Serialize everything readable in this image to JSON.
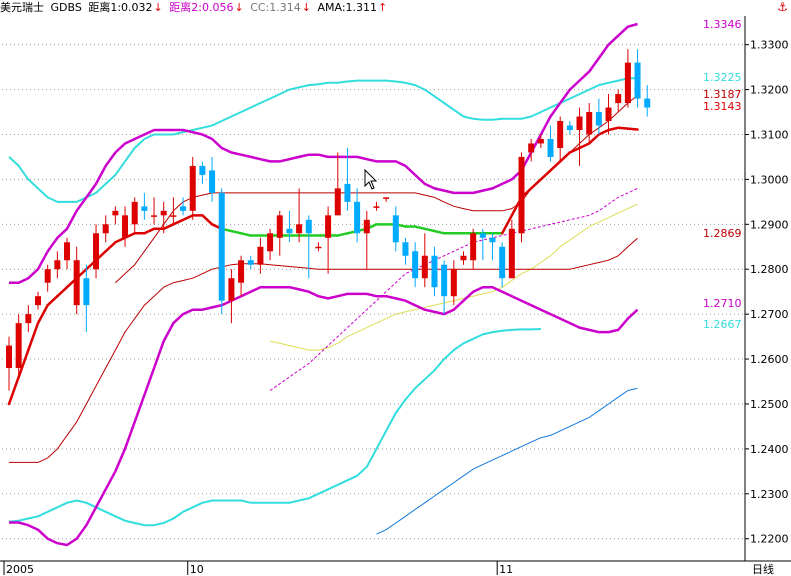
{
  "header": {
    "symbol": "美元瑞士",
    "indicator": "GDBS",
    "items": [
      {
        "label": "距离1:0.032",
        "arrow": "↓",
        "color": "#000000"
      },
      {
        "label": "距离2:0.056",
        "arrow": "↓",
        "color": "#cc00cc"
      },
      {
        "label": "CC:1.314",
        "arrow": "↓",
        "color": "#777777"
      },
      {
        "label": "AMA:1.311",
        "arrow": "↑",
        "color": "#000000"
      }
    ],
    "corner_icon": "anchor-icon"
  },
  "colors": {
    "up": "#dd0000",
    "down": "#00aaff",
    "boll_outer": "#cc00cc",
    "boll_cyan": "#33dddd",
    "mid_red": "#bb0000",
    "ama": "#dd0000",
    "ama_flat": "#22cc22",
    "ma_blue": "#1177dd",
    "ma_yellow": "#dddd55"
  },
  "chart_data": {
    "type": "candlestick",
    "ylim": [
      1.216,
      1.338
    ],
    "y_ticks": [
      "1.3300",
      "1.3200",
      "1.3100",
      "1.3000",
      "1.2900",
      "1.2800",
      "1.2700",
      "1.2600",
      "1.2500",
      "1.2400",
      "1.2300",
      "1.2200"
    ],
    "y_tick_values": [
      1.33,
      1.32,
      1.31,
      1.3,
      1.29,
      1.28,
      1.27,
      1.26,
      1.25,
      1.24,
      1.23,
      1.22
    ],
    "x_labels": [
      {
        "i": 0,
        "text": "2005"
      },
      {
        "i": 19,
        "text": "10"
      },
      {
        "i": 51,
        "text": "11"
      }
    ],
    "x_unit": "日线",
    "right_labels": [
      {
        "value": "1.3346",
        "color": "#cc00cc"
      },
      {
        "value": "1.3225",
        "color": "#33dddd"
      },
      {
        "value": "1.3187",
        "color": "#bb0000"
      },
      {
        "value": "1.3143",
        "color": "#dd0000"
      },
      {
        "value": "1.2869",
        "color": "#bb0000"
      },
      {
        "value": "1.2710",
        "color": "#cc00cc"
      },
      {
        "value": "1.2667",
        "color": "#33dddd"
      }
    ],
    "candles": [
      [
        1.258,
        1.263,
        1.253,
        1.265
      ],
      [
        1.258,
        1.268,
        1.256,
        1.27
      ],
      [
        1.268,
        1.27,
        1.266,
        1.272
      ],
      [
        1.272,
        1.274,
        1.271,
        1.275
      ],
      [
        1.277,
        1.28,
        1.275,
        1.281
      ],
      [
        1.28,
        1.282,
        1.278,
        1.284
      ],
      [
        1.282,
        1.286,
        1.28,
        1.287
      ],
      [
        1.272,
        1.282,
        1.27,
        1.285
      ],
      [
        1.278,
        1.272,
        1.266,
        1.281
      ],
      [
        1.28,
        1.288,
        1.278,
        1.29
      ],
      [
        1.288,
        1.29,
        1.286,
        1.292
      ],
      [
        1.292,
        1.293,
        1.29,
        1.294
      ],
      [
        1.287,
        1.292,
        1.285,
        1.294
      ],
      [
        1.29,
        1.295,
        1.288,
        1.296
      ],
      [
        1.294,
        1.293,
        1.291,
        1.297
      ],
      [
        1.292,
        1.292,
        1.29,
        1.296
      ],
      [
        1.292,
        1.293,
        1.288,
        1.295
      ],
      [
        1.292,
        1.292,
        1.29,
        1.296
      ],
      [
        1.294,
        1.293,
        1.292,
        1.296
      ],
      [
        1.293,
        1.303,
        1.291,
        1.305
      ],
      [
        1.303,
        1.301,
        1.299,
        1.304
      ],
      [
        1.302,
        1.297,
        1.295,
        1.305
      ],
      [
        1.297,
        1.273,
        1.27,
        1.298
      ],
      [
        1.273,
        1.278,
        1.268,
        1.28
      ],
      [
        1.277,
        1.282,
        1.274,
        1.283
      ],
      [
        1.282,
        1.281,
        1.28,
        1.283
      ],
      [
        1.281,
        1.285,
        1.279,
        1.287
      ],
      [
        1.284,
        1.288,
        1.282,
        1.289
      ],
      [
        1.287,
        1.292,
        1.283,
        1.293
      ],
      [
        1.289,
        1.288,
        1.286,
        1.293
      ],
      [
        1.288,
        1.29,
        1.286,
        1.298
      ],
      [
        1.291,
        1.288,
        1.278,
        1.292
      ],
      [
        1.285,
        1.285,
        1.284,
        1.286
      ],
      [
        1.287,
        1.292,
        1.279,
        1.294
      ],
      [
        1.292,
        1.298,
        1.292,
        1.306
      ],
      [
        1.299,
        1.295,
        1.293,
        1.307
      ],
      [
        1.295,
        1.288,
        1.286,
        1.298
      ],
      [
        1.288,
        1.291,
        1.28,
        1.293
      ],
      [
        1.294,
        1.294,
        1.293,
        1.295
      ],
      [
        1.296,
        1.296,
        1.295,
        1.296
      ],
      [
        1.292,
        1.286,
        1.284,
        1.294
      ],
      [
        1.286,
        1.283,
        1.281,
        1.287
      ],
      [
        1.284,
        1.278,
        1.276,
        1.286
      ],
      [
        1.278,
        1.283,
        1.276,
        1.288
      ],
      [
        1.283,
        1.276,
        1.274,
        1.285
      ],
      [
        1.281,
        1.274,
        1.27,
        1.282
      ],
      [
        1.274,
        1.28,
        1.272,
        1.282
      ],
      [
        1.282,
        1.283,
        1.281,
        1.284
      ],
      [
        1.282,
        1.288,
        1.28,
        1.289
      ],
      [
        1.288,
        1.287,
        1.282,
        1.289
      ],
      [
        1.287,
        1.286,
        1.282,
        1.288
      ],
      [
        1.285,
        1.278,
        1.276,
        1.286
      ],
      [
        1.278,
        1.289,
        1.278,
        1.291
      ],
      [
        1.288,
        1.305,
        1.286,
        1.306
      ],
      [
        1.306,
        1.308,
        1.304,
        1.309
      ],
      [
        1.308,
        1.309,
        1.307,
        1.31
      ],
      [
        1.309,
        1.305,
        1.304,
        1.312
      ],
      [
        1.307,
        1.313,
        1.304,
        1.314
      ],
      [
        1.312,
        1.311,
        1.31,
        1.313
      ],
      [
        1.311,
        1.314,
        1.303,
        1.316
      ],
      [
        1.31,
        1.315,
        1.308,
        1.317
      ],
      [
        1.315,
        1.312,
        1.31,
        1.318
      ],
      [
        1.313,
        1.316,
        1.31,
        1.319
      ],
      [
        1.317,
        1.319,
        1.315,
        1.32
      ],
      [
        1.317,
        1.326,
        1.316,
        1.329
      ],
      [
        1.326,
        1.318,
        1.316,
        1.329
      ],
      [
        1.318,
        1.316,
        1.314,
        1.321
      ]
    ],
    "series": {
      "boll_upper": [
        1.277,
        1.277,
        1.278,
        1.28,
        1.284,
        1.287,
        1.289,
        1.293,
        1.296,
        1.299,
        1.303,
        1.306,
        1.308,
        1.309,
        1.31,
        1.311,
        1.311,
        1.311,
        1.311,
        1.3105,
        1.31,
        1.309,
        1.307,
        1.306,
        1.3055,
        1.305,
        1.3045,
        1.304,
        1.304,
        1.3045,
        1.305,
        1.3055,
        1.3055,
        1.305,
        1.305,
        1.305,
        1.305,
        1.3045,
        1.304,
        1.304,
        1.304,
        1.303,
        1.301,
        1.299,
        1.298,
        1.2975,
        1.297,
        1.297,
        1.297,
        1.2975,
        1.298,
        1.299,
        1.3,
        1.302,
        1.306,
        1.31,
        1.314,
        1.317,
        1.32,
        1.322,
        1.324,
        1.327,
        1.33,
        1.332,
        1.334,
        1.3346
      ],
      "boll_lower": [
        1.2236,
        1.2236,
        1.223,
        1.222,
        1.22,
        1.219,
        1.2186,
        1.22,
        1.223,
        1.227,
        1.231,
        1.235,
        1.24,
        1.246,
        1.252,
        1.258,
        1.264,
        1.268,
        1.27,
        1.271,
        1.271,
        1.2715,
        1.272,
        1.273,
        1.274,
        1.275,
        1.276,
        1.276,
        1.276,
        1.276,
        1.2755,
        1.275,
        1.274,
        1.2735,
        1.274,
        1.2745,
        1.2745,
        1.2745,
        1.274,
        1.274,
        1.2735,
        1.273,
        1.272,
        1.271,
        1.2705,
        1.27,
        1.271,
        1.273,
        1.275,
        1.276,
        1.276,
        1.275,
        1.274,
        1.273,
        1.272,
        1.271,
        1.27,
        1.269,
        1.268,
        1.267,
        1.2665,
        1.266,
        1.266,
        1.2665,
        1.269,
        1.271
      ],
      "cyan_upper": [
        1.305,
        1.303,
        1.3,
        1.298,
        1.296,
        1.295,
        1.295,
        1.295,
        1.296,
        1.297,
        1.299,
        1.301,
        1.304,
        1.307,
        1.309,
        1.31,
        1.31,
        1.31,
        1.3105,
        1.311,
        1.3115,
        1.312,
        1.313,
        1.314,
        1.315,
        1.316,
        1.317,
        1.318,
        1.319,
        1.32,
        1.3205,
        1.321,
        1.3212,
        1.3215,
        1.3215,
        1.3218,
        1.322,
        1.322,
        1.322,
        1.322,
        1.3218,
        1.3215,
        1.321,
        1.32,
        1.3185,
        1.317,
        1.3155,
        1.314,
        1.3135,
        1.3133,
        1.3133,
        1.3135,
        1.3135,
        1.3135,
        1.314,
        1.315,
        1.316,
        1.317,
        1.318,
        1.319,
        1.32,
        1.321,
        1.3215,
        1.322,
        1.3225,
        1.3225
      ],
      "cyan_lower": [
        1.2238,
        1.224,
        1.2245,
        1.225,
        1.226,
        1.227,
        1.228,
        1.2285,
        1.228,
        1.227,
        1.226,
        1.225,
        1.224,
        1.2235,
        1.223,
        1.223,
        1.2235,
        1.2245,
        1.226,
        1.227,
        1.228,
        1.2285,
        1.2285,
        1.2285,
        1.2285,
        1.228,
        1.228,
        1.228,
        1.228,
        1.228,
        1.2285,
        1.229,
        1.23,
        1.231,
        1.232,
        1.233,
        1.234,
        1.236,
        1.24,
        1.244,
        1.248,
        1.251,
        1.2535,
        1.2555,
        1.2575,
        1.26,
        1.262,
        1.2635,
        1.2645,
        1.2655,
        1.266,
        1.2663,
        1.2665,
        1.2666,
        1.2666,
        1.2667
      ],
      "mid_upper": [
        1.277,
        1.279,
        1.281,
        1.284,
        1.287,
        1.29,
        1.293,
        1.295,
        1.296,
        1.2965,
        1.297,
        1.297,
        1.297,
        1.297,
        1.297,
        1.297,
        1.297,
        1.297,
        1.297,
        1.297,
        1.297,
        1.297,
        1.297,
        1.297,
        1.297,
        1.297,
        1.297,
        1.297,
        1.297,
        1.297,
        1.297,
        1.297,
        1.2965,
        1.296,
        1.295,
        1.294,
        1.2935,
        1.293,
        1.293,
        1.293,
        1.293,
        1.2935,
        1.295,
        1.298,
        1.3,
        1.302,
        1.304,
        1.306,
        1.308,
        1.31,
        1.3115,
        1.313,
        1.315,
        1.317,
        1.3187
      ],
      "mid_lower": [
        1.237,
        1.237,
        1.237,
        1.237,
        1.238,
        1.24,
        1.243,
        1.246,
        1.25,
        1.254,
        1.258,
        1.262,
        1.266,
        1.269,
        1.272,
        1.274,
        1.276,
        1.277,
        1.2775,
        1.278,
        1.279,
        1.28,
        1.2805,
        1.281,
        1.2812,
        1.2812,
        1.2812,
        1.281,
        1.2808,
        1.2806,
        1.2804,
        1.2802,
        1.28,
        1.28,
        1.28,
        1.28,
        1.28,
        1.28,
        1.28,
        1.28,
        1.28,
        1.28,
        1.28,
        1.28,
        1.28,
        1.28,
        1.28,
        1.28,
        1.28,
        1.28,
        1.28,
        1.28,
        1.28,
        1.28,
        1.28,
        1.28,
        1.28,
        1.28,
        1.28,
        1.2805,
        1.281,
        1.2815,
        1.282,
        1.283,
        1.285,
        1.2869
      ],
      "ama": [
        1.25,
        1.256,
        1.262,
        1.268,
        1.272,
        1.274,
        1.276,
        1.278,
        1.28,
        1.282,
        1.284,
        1.286,
        1.287,
        1.288,
        1.288,
        1.289,
        1.289,
        1.29,
        1.291,
        1.292,
        1.292,
        1.29,
        1.289,
        1.2885,
        1.288,
        1.2875,
        1.2875,
        1.2875,
        1.2875,
        1.2875,
        1.2875,
        1.2875,
        1.2875,
        1.2875,
        1.2875,
        1.288,
        1.2885,
        1.289,
        1.29,
        1.29,
        1.29,
        1.2895,
        1.2895,
        1.289,
        1.2885,
        1.288,
        1.288,
        1.288,
        1.288,
        1.288,
        1.288,
        1.288,
        1.292,
        1.296,
        1.298,
        1.3,
        1.302,
        1.304,
        1.306,
        1.307,
        1.308,
        1.31,
        1.311,
        1.3115,
        1.3113,
        1.3111
      ],
      "ma_dash": [
        1.253,
        1.2545,
        1.256,
        1.2575,
        1.259,
        1.261,
        1.263,
        1.265,
        1.267,
        1.269,
        1.271,
        1.273,
        1.275,
        1.277,
        1.279,
        1.28,
        1.281,
        1.282,
        1.283,
        1.284,
        1.285,
        1.286,
        1.2865,
        1.287,
        1.2875,
        1.288,
        1.2885,
        1.289,
        1.2895,
        1.29,
        1.2905,
        1.291,
        1.2915,
        1.292,
        1.293,
        1.2945,
        1.296,
        1.297,
        1.298
      ],
      "ma_yellow": [
        1.264,
        1.2635,
        1.263,
        1.2625,
        1.262,
        1.262,
        1.2625,
        1.2635,
        1.265,
        1.266,
        1.267,
        1.268,
        1.269,
        1.27,
        1.2705,
        1.271,
        1.2715,
        1.272,
        1.2725,
        1.273,
        1.2735,
        1.274,
        1.2745,
        1.275,
        1.276,
        1.2775,
        1.279,
        1.28,
        1.2815,
        1.283,
        1.285,
        1.2865,
        1.288,
        1.2895,
        1.2905,
        1.2915,
        1.2925,
        1.2935,
        1.2945
      ],
      "ma_blue": [
        1.221,
        1.222,
        1.2235,
        1.225,
        1.2265,
        1.228,
        1.2295,
        1.231,
        1.2325,
        1.234,
        1.2355,
        1.2365,
        1.2375,
        1.2385,
        1.2395,
        1.2405,
        1.2415,
        1.2425,
        1.243,
        1.244,
        1.245,
        1.246,
        1.247,
        1.2485,
        1.25,
        1.2515,
        1.253,
        1.2535
      ]
    }
  }
}
